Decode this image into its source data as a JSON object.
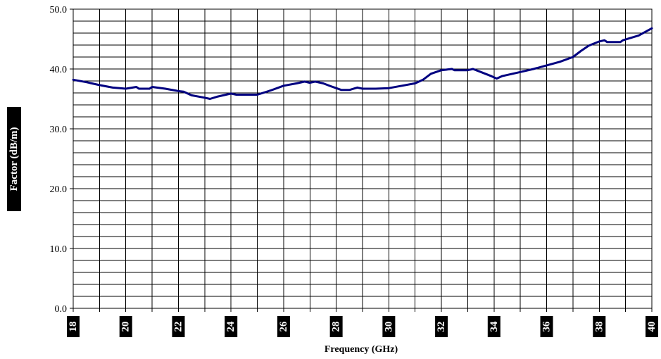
{
  "chart_data": {
    "type": "line",
    "title": "",
    "xlabel": "Frequency (GHz)",
    "ylabel": "Factor (dB/m)",
    "xlim": [
      18,
      40
    ],
    "ylim": [
      0,
      50
    ],
    "x_ticks": [
      "18",
      "20",
      "22",
      "24",
      "26",
      "28",
      "30",
      "32",
      "34",
      "36",
      "38",
      "40"
    ],
    "y_ticks": [
      "0.0",
      "10.0",
      "20.0",
      "30.0",
      "40.0",
      "50.0"
    ],
    "grid": true,
    "line_color": "#000080",
    "series": [
      {
        "x": [
          18.0,
          18.5,
          19.0,
          19.5,
          20.0,
          20.4,
          20.5,
          20.9,
          21.0,
          21.5,
          22.0,
          22.2,
          22.5,
          23.0,
          23.2,
          23.5,
          24.0,
          24.2,
          24.5,
          25.0,
          25.5,
          26.0,
          26.5,
          26.8,
          27.0,
          27.2,
          27.5,
          27.8,
          28.0,
          28.2,
          28.5,
          28.8,
          29.0,
          29.5,
          30.0,
          30.5,
          31.0,
          31.3,
          31.6,
          32.0,
          32.4,
          32.5,
          33.0,
          33.2,
          33.5,
          33.9,
          34.1,
          34.3,
          35.0,
          35.5,
          36.0,
          36.5,
          37.0,
          37.3,
          37.6,
          38.0,
          38.2,
          38.3,
          38.8,
          38.9,
          39.5,
          40.0
        ],
        "y": [
          38.2,
          37.8,
          37.3,
          36.9,
          36.7,
          37.0,
          36.7,
          36.7,
          37.0,
          36.7,
          36.3,
          36.2,
          35.6,
          35.2,
          35.0,
          35.4,
          35.9,
          35.7,
          35.7,
          35.7,
          36.4,
          37.2,
          37.6,
          37.9,
          37.7,
          37.9,
          37.6,
          37.1,
          36.8,
          36.5,
          36.5,
          36.9,
          36.7,
          36.7,
          36.8,
          37.2,
          37.6,
          38.2,
          39.2,
          39.8,
          40.0,
          39.8,
          39.8,
          40.0,
          39.5,
          38.8,
          38.4,
          38.8,
          39.5,
          40.0,
          40.6,
          41.2,
          42.0,
          43.0,
          43.9,
          44.6,
          44.8,
          44.5,
          44.5,
          44.8,
          45.6,
          46.8
        ]
      }
    ]
  }
}
